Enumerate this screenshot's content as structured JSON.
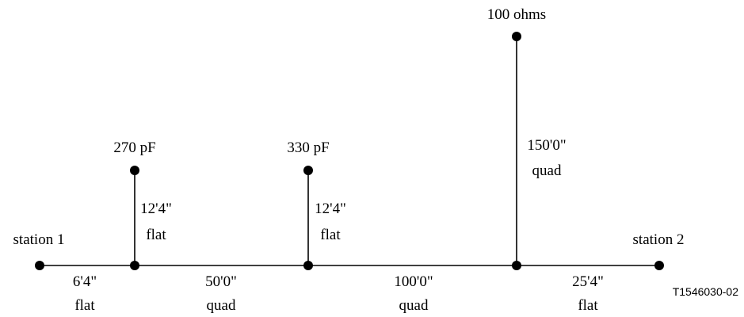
{
  "stations": {
    "left": "station 1",
    "right": "station 2"
  },
  "terminations": {
    "stub1": "270 pF",
    "stub2": "330 pF",
    "stub3": "100 ohms"
  },
  "stub_segments": {
    "stub1": {
      "length": "12'4\"",
      "type": "flat"
    },
    "stub2": {
      "length": "12'4\"",
      "type": "flat"
    },
    "stub3": {
      "length": "150'0\"",
      "type": "quad"
    }
  },
  "bus_segments": [
    {
      "length": "6'4\"",
      "type": "flat"
    },
    {
      "length": "50'0\"",
      "type": "quad"
    },
    {
      "length": "100'0\"",
      "type": "quad"
    },
    {
      "length": "25'4\"",
      "type": "flat"
    }
  ],
  "figure_ref": "T1546030-02"
}
